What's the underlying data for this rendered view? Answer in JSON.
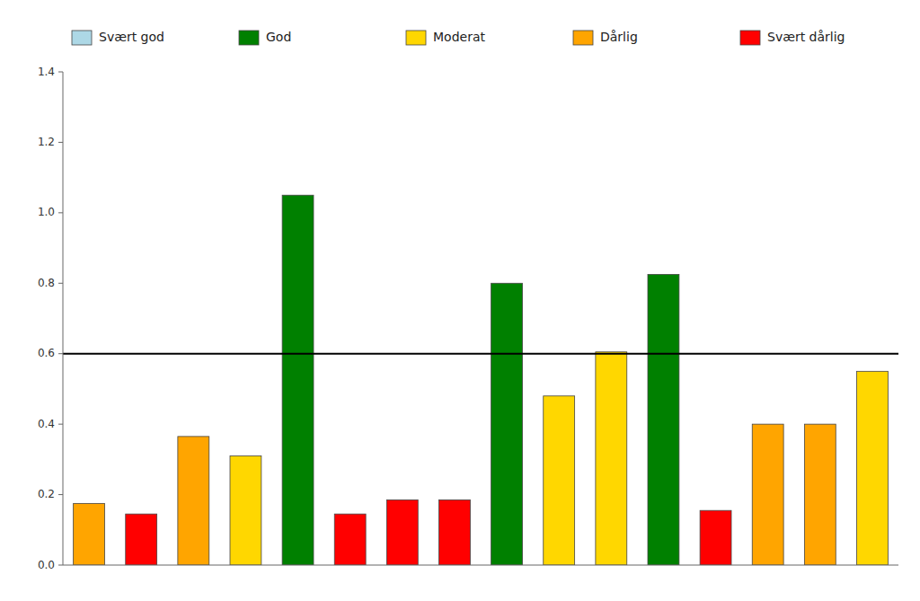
{
  "chart_data": {
    "type": "bar",
    "categories": [
      null,
      null,
      null,
      null,
      null,
      null,
      null,
      null,
      null,
      null,
      null,
      null,
      null,
      null,
      null,
      null
    ],
    "series": [
      {
        "name": "Svært god",
        "color": "#ADD8E6",
        "values": [
          null,
          null,
          null,
          null,
          null,
          null,
          null,
          null,
          null,
          null,
          null,
          null,
          null,
          null,
          null,
          null
        ]
      },
      {
        "name": "God",
        "color": "#008000",
        "values": [
          null,
          null,
          null,
          null,
          1.05,
          null,
          null,
          null,
          0.8,
          null,
          null,
          0.825,
          null,
          null,
          null,
          null
        ]
      },
      {
        "name": "Moderat",
        "color": "#FFD700",
        "values": [
          null,
          null,
          null,
          0.31,
          null,
          null,
          null,
          null,
          null,
          0.48,
          0.605,
          null,
          null,
          null,
          null,
          0.55
        ]
      },
      {
        "name": "Dårlig",
        "color": "#FFA500",
        "values": [
          0.175,
          null,
          0.365,
          null,
          null,
          null,
          null,
          null,
          null,
          null,
          null,
          null,
          null,
          0.4,
          0.4,
          null
        ]
      },
      {
        "name": "Svært dårlig",
        "color": "#FF0000",
        "values": [
          null,
          0.145,
          null,
          null,
          null,
          0.145,
          0.185,
          0.185,
          null,
          null,
          null,
          null,
          0.155,
          null,
          null,
          null
        ]
      }
    ],
    "stacked": true,
    "threshold": 0.6,
    "ylim": [
      0,
      1.4
    ],
    "yticks": [
      {
        "value": 0,
        "label": "0.0"
      },
      0.2,
      0.4,
      0.6,
      0.8,
      {
        "value": 1,
        "label": "1.0"
      },
      1.2,
      1.4
    ],
    "grid": false,
    "legend": "top",
    "tick_labels": "y"
  }
}
